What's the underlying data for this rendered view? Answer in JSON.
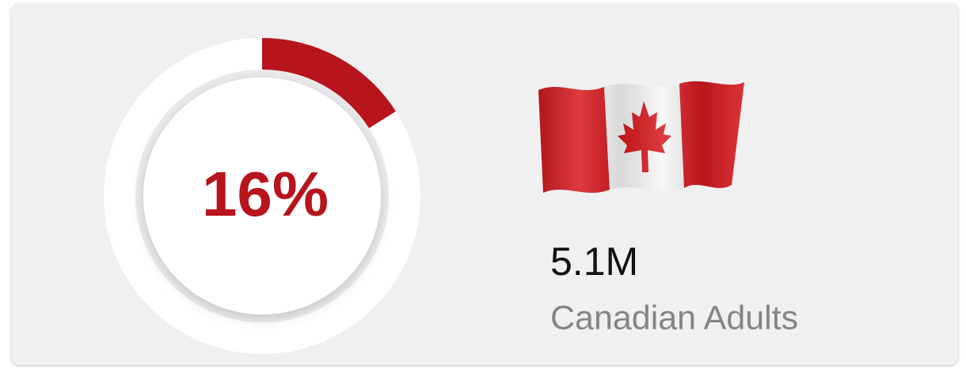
{
  "chart_data": {
    "type": "donut",
    "values": [
      16
    ],
    "value_labels": [
      "16%"
    ],
    "ylim": [
      0,
      100
    ],
    "color": "#b8141c",
    "track_color": "#ffffff",
    "annotations": [
      "5.1M",
      "Canadian Adults"
    ]
  }
}
